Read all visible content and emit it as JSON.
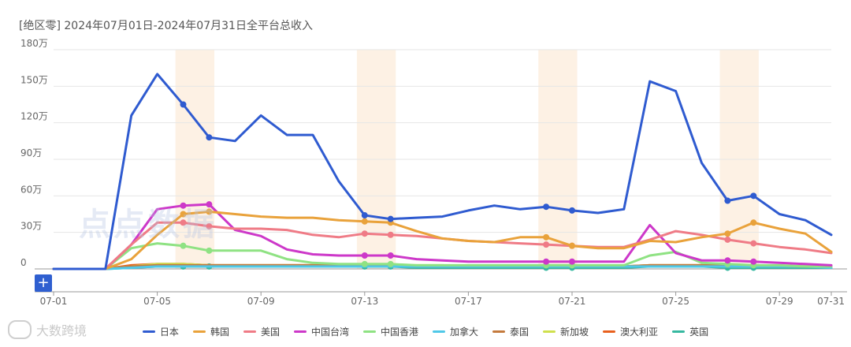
{
  "header": {
    "title": "[绝区零]  2024年07月01日-2024年07月31日全平台总收入"
  },
  "watermark": {
    "text": "点点数据"
  },
  "brand": {
    "label": "大数跨境"
  },
  "controls": {
    "plus_label": "+"
  },
  "colors": {
    "highlight_band": "#fdf1e4",
    "grid": "#e6e6e6"
  },
  "chart_data": {
    "type": "line",
    "title": "[绝区零]  2024年07月01日-2024年07月31日全平台总收入",
    "ylim": [
      0,
      180
    ],
    "yticks": [
      0,
      30,
      60,
      90,
      120,
      150,
      180
    ],
    "ytick_labels": [
      "0",
      "30万",
      "60万",
      "90万",
      "120万",
      "150万",
      "180万"
    ],
    "x": [
      "07-01",
      "07-02",
      "07-03",
      "07-04",
      "07-05",
      "07-06",
      "07-07",
      "07-08",
      "07-09",
      "07-10",
      "07-11",
      "07-12",
      "07-13",
      "07-14",
      "07-15",
      "07-16",
      "07-17",
      "07-18",
      "07-19",
      "07-20",
      "07-21",
      "07-22",
      "07-23",
      "07-24",
      "07-25",
      "07-26",
      "07-27",
      "07-28",
      "07-29",
      "07-30",
      "07-31"
    ],
    "xtick_labels": [
      "07-01",
      "07-05",
      "07-09",
      "07-13",
      "07-17",
      "07-21",
      "07-25",
      "07-29",
      "07-31"
    ],
    "highlight_bands": [
      "07-06",
      "07-13",
      "07-20",
      "07-27"
    ],
    "legend_position": "bottom",
    "grid": true,
    "series": [
      {
        "name": "日本",
        "color": "#2f5bd0",
        "values": [
          0,
          0,
          0,
          126,
          160,
          135,
          108,
          105,
          126,
          110,
          110,
          72,
          44,
          41,
          42,
          43,
          48,
          52,
          49,
          51,
          48,
          46,
          49,
          154,
          146,
          87,
          56,
          60,
          45,
          40,
          28
        ],
        "markers": [
          5,
          6,
          12,
          13,
          19,
          20,
          26,
          27
        ]
      },
      {
        "name": "韩国",
        "color": "#e9a23b",
        "values": [
          0,
          0,
          0,
          8,
          28,
          45,
          47,
          45,
          43,
          42,
          42,
          40,
          39,
          38,
          31,
          25,
          23,
          22,
          26,
          26,
          19,
          17,
          17,
          23,
          22,
          26,
          29,
          38,
          33,
          29,
          14
        ],
        "markers": [
          5,
          6,
          12,
          13,
          19,
          20,
          26,
          27
        ]
      },
      {
        "name": "美国",
        "color": "#ef7b86",
        "values": [
          0,
          0,
          0,
          20,
          38,
          38,
          35,
          33,
          33,
          32,
          28,
          26,
          29,
          28,
          27,
          25,
          23,
          22,
          21,
          20,
          19,
          18,
          18,
          24,
          31,
          28,
          24,
          21,
          18,
          16,
          13
        ],
        "markers": [
          5,
          6,
          12,
          13,
          19,
          20,
          26,
          27
        ]
      },
      {
        "name": "中国台湾",
        "color": "#cd38c9",
        "values": [
          0,
          0,
          0,
          20,
          49,
          52,
          53,
          32,
          27,
          16,
          12,
          11,
          11,
          11,
          8,
          7,
          6,
          6,
          6,
          6,
          6,
          6,
          6,
          36,
          13,
          7,
          7,
          6,
          5,
          4,
          3
        ],
        "markers": [
          5,
          6,
          12,
          13,
          19,
          20,
          26,
          27
        ]
      },
      {
        "name": "中国香港",
        "color": "#8fe283",
        "values": [
          0,
          0,
          0,
          17,
          21,
          19,
          15,
          15,
          15,
          8,
          5,
          4,
          4,
          4,
          3,
          3,
          3,
          3,
          3,
          3,
          3,
          3,
          3,
          11,
          14,
          5,
          4,
          3,
          3,
          2,
          2
        ],
        "markers": [
          5,
          6,
          12,
          13,
          19,
          20,
          26,
          27
        ]
      },
      {
        "name": "加拿大",
        "color": "#4fc8e8",
        "values": [
          0,
          0,
          0,
          1,
          2,
          2,
          2,
          2,
          2,
          2,
          2,
          2,
          2,
          2,
          2,
          2,
          2,
          2,
          2,
          2,
          2,
          2,
          2,
          2,
          2,
          2,
          2,
          2,
          2,
          2,
          1
        ]
      },
      {
        "name": "泰国",
        "color": "#c47a3d",
        "values": [
          0,
          0,
          0,
          2,
          3,
          3,
          3,
          3,
          3,
          3,
          3,
          3,
          3,
          3,
          2,
          2,
          2,
          2,
          2,
          2,
          2,
          2,
          2,
          3,
          3,
          3,
          3,
          2,
          2,
          2,
          2
        ]
      },
      {
        "name": "新加坡",
        "color": "#cfe04d",
        "values": [
          0,
          0,
          0,
          2,
          4,
          4,
          3,
          3,
          3,
          3,
          3,
          3,
          3,
          3,
          3,
          3,
          2,
          2,
          2,
          2,
          2,
          2,
          2,
          3,
          3,
          3,
          2,
          2,
          2,
          2,
          2
        ]
      },
      {
        "name": "澳大利亚",
        "color": "#e8601d",
        "values": [
          0,
          0,
          0,
          3,
          4,
          4,
          3,
          3,
          3,
          3,
          3,
          3,
          3,
          3,
          2,
          2,
          2,
          2,
          2,
          2,
          2,
          2,
          2,
          3,
          3,
          3,
          2,
          2,
          2,
          2,
          2
        ]
      },
      {
        "name": "英国",
        "color": "#36b8a0",
        "values": [
          0,
          0,
          0,
          1,
          2,
          2,
          2,
          2,
          2,
          2,
          2,
          2,
          2,
          2,
          1,
          1,
          1,
          1,
          1,
          1,
          1,
          1,
          1,
          2,
          2,
          2,
          1,
          1,
          1,
          1,
          1
        ],
        "markers": [
          5,
          6,
          12,
          13,
          19,
          20,
          26,
          27
        ]
      }
    ]
  }
}
